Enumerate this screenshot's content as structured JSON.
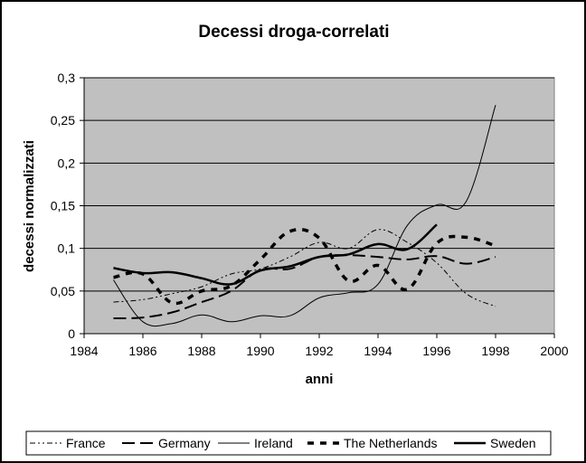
{
  "chart_data": {
    "type": "line",
    "title": "Decessi droga-correlati",
    "xlabel": "anni",
    "ylabel": "decessi normalizzati",
    "xlim": [
      1984,
      2000
    ],
    "ylim": [
      0,
      0.3
    ],
    "x_ticks": [
      "1984",
      "1986",
      "1988",
      "1990",
      "1992",
      "1994",
      "1996",
      "1998",
      "2000"
    ],
    "y_ticks": [
      "0",
      "0,05",
      "0,1",
      "0,15",
      "0,2",
      "0,25",
      "0,3"
    ],
    "grid": true,
    "plot_background": "#c0c0c0",
    "legend_position": "bottom",
    "series": [
      {
        "name": "France",
        "style": "dash-dot-dot",
        "x": [
          1985,
          1986,
          1987,
          1988,
          1989,
          1990,
          1991,
          1992,
          1993,
          1994,
          1995,
          1996,
          1997,
          1998
        ],
        "values": [
          0.037,
          0.04,
          0.047,
          0.055,
          0.07,
          0.076,
          0.09,
          0.107,
          0.1,
          0.122,
          0.107,
          0.083,
          0.047,
          0.032
        ]
      },
      {
        "name": "Germany",
        "style": "long-dash",
        "x": [
          1985,
          1986,
          1987,
          1988,
          1989,
          1990,
          1991,
          1992,
          1993,
          1994,
          1995,
          1996,
          1997,
          1998
        ],
        "values": [
          0.018,
          0.019,
          0.025,
          0.037,
          0.05,
          0.075,
          0.076,
          0.09,
          0.092,
          0.09,
          0.087,
          0.091,
          0.082,
          0.09
        ]
      },
      {
        "name": "Ireland",
        "style": "thin-solid",
        "x": [
          1985,
          1986,
          1987,
          1988,
          1989,
          1990,
          1991,
          1992,
          1993,
          1994,
          1995,
          1996,
          1997,
          1998
        ],
        "values": [
          0.063,
          0.014,
          0.012,
          0.022,
          0.014,
          0.021,
          0.021,
          0.042,
          0.048,
          0.058,
          0.127,
          0.151,
          0.155,
          0.268
        ]
      },
      {
        "name": "The Netherlands",
        "style": "bold-dash",
        "x": [
          1985,
          1986,
          1987,
          1988,
          1989,
          1990,
          1991,
          1992,
          1993,
          1994,
          1995,
          1996,
          1997,
          1998
        ],
        "values": [
          0.066,
          0.07,
          0.036,
          0.05,
          0.056,
          0.087,
          0.12,
          0.112,
          0.062,
          0.08,
          0.052,
          0.106,
          0.113,
          0.103
        ]
      },
      {
        "name": "Sweden",
        "style": "bold-solid",
        "x": [
          1985,
          1986,
          1987,
          1988,
          1989,
          1990,
          1991,
          1992,
          1993,
          1994,
          1995,
          1996
        ],
        "values": [
          0.077,
          0.071,
          0.072,
          0.065,
          0.058,
          0.074,
          0.079,
          0.09,
          0.093,
          0.105,
          0.099,
          0.128
        ]
      }
    ]
  }
}
